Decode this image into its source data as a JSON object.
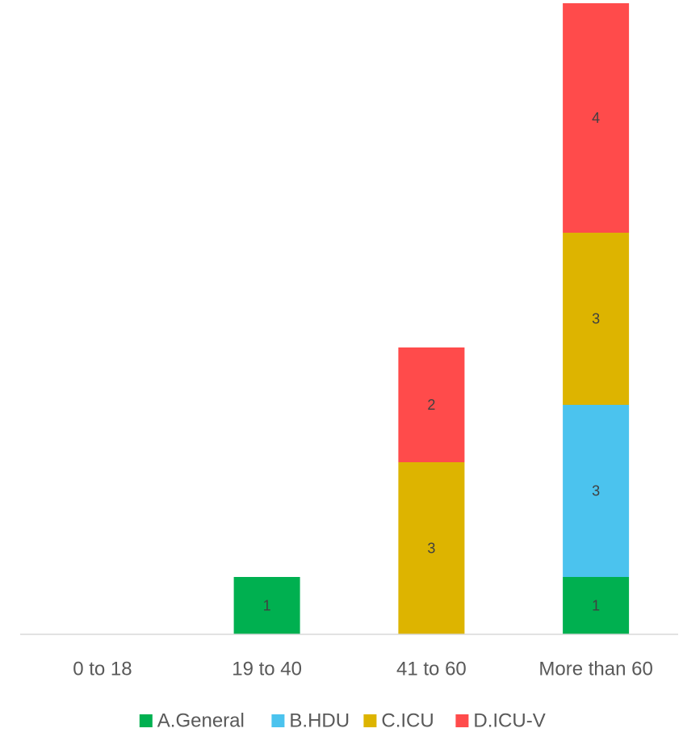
{
  "chart_data": {
    "type": "bar",
    "stacked": true,
    "categories": [
      "0 to 18",
      "19 to 40",
      "41 to 60",
      "More than 60"
    ],
    "series": [
      {
        "name": "A.General",
        "color": "#00B050",
        "values": [
          0,
          1,
          0,
          1
        ]
      },
      {
        "name": "B.HDU",
        "color": "#4BC3EE",
        "values": [
          0,
          0,
          0,
          3
        ]
      },
      {
        "name": "C.ICU",
        "color": "#DDB400",
        "values": [
          0,
          0,
          3,
          3
        ]
      },
      {
        "name": "D.ICU-V",
        "color": "#FF4B4B",
        "values": [
          0,
          0,
          2,
          4
        ]
      }
    ],
    "data_labels": true,
    "ylim": [
      0,
      11
    ],
    "grid": false,
    "legend_position": "bottom"
  }
}
